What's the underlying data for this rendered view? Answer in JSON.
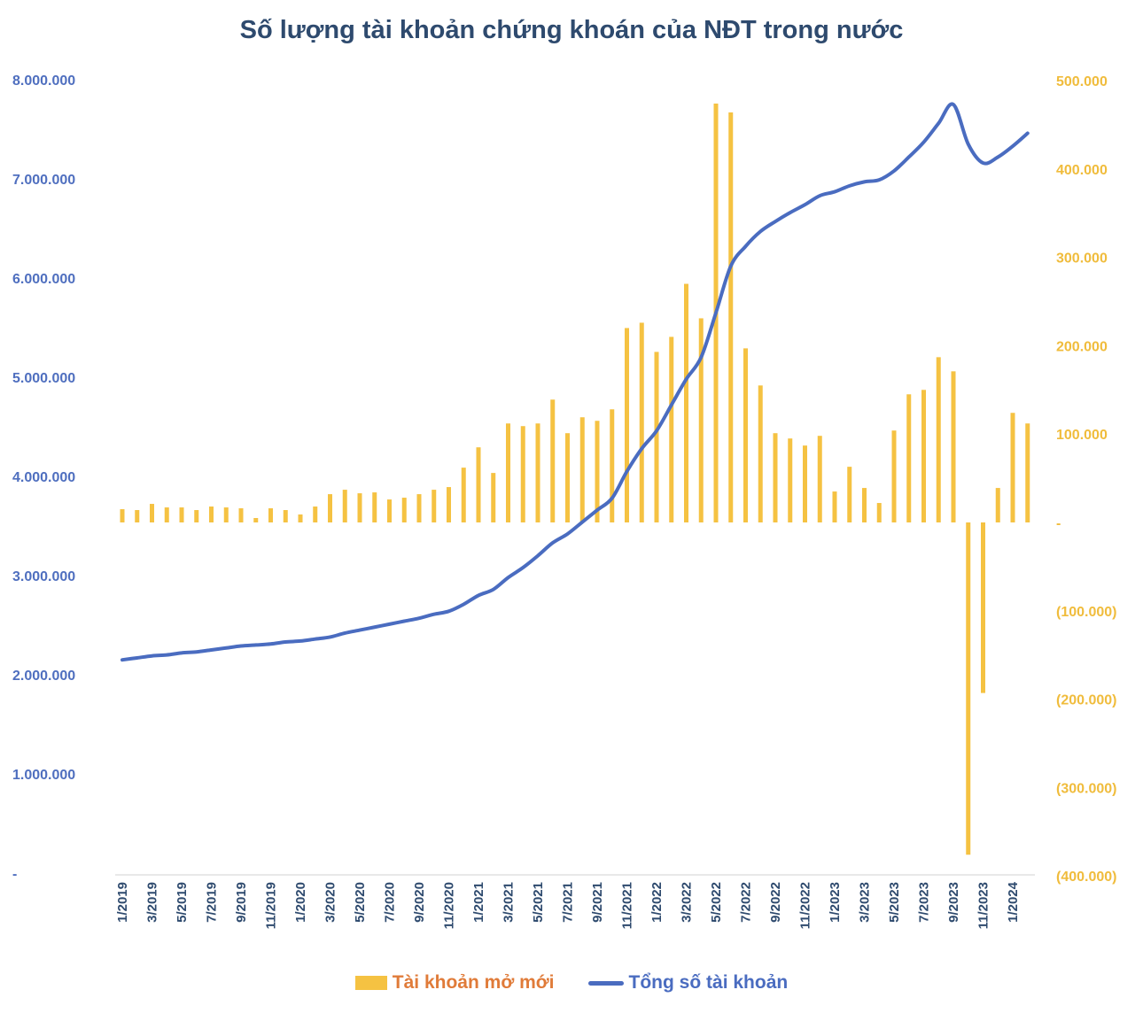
{
  "chart_data": {
    "type": "bar+line",
    "title": "Số lượng tài khoản chứng khoán của NĐT trong nước",
    "categories": [
      "1/2019",
      "2/2019",
      "3/2019",
      "4/2019",
      "5/2019",
      "6/2019",
      "7/2019",
      "8/2019",
      "9/2019",
      "10/2019",
      "11/2019",
      "12/2019",
      "1/2020",
      "2/2020",
      "3/2020",
      "4/2020",
      "5/2020",
      "6/2020",
      "7/2020",
      "8/2020",
      "9/2020",
      "10/2020",
      "11/2020",
      "12/2020",
      "1/2021",
      "2/2021",
      "3/2021",
      "4/2021",
      "5/2021",
      "6/2021",
      "7/2021",
      "8/2021",
      "9/2021",
      "10/2021",
      "11/2021",
      "12/2021",
      "1/2022",
      "2/2022",
      "3/2022",
      "4/2022",
      "5/2022",
      "6/2022",
      "7/2022",
      "8/2022",
      "9/2022",
      "10/2022",
      "11/2022",
      "12/2022",
      "1/2023",
      "2/2023",
      "3/2023",
      "4/2023",
      "5/2023",
      "6/2023",
      "7/2023",
      "8/2023",
      "9/2023",
      "10/2023",
      "11/2023",
      "12/2023",
      "1/2024",
      "2/2024"
    ],
    "x_tick_labels": [
      "1/2019",
      "3/2019",
      "5/2019",
      "7/2019",
      "9/2019",
      "11/2019",
      "1/2020",
      "3/2020",
      "5/2020",
      "7/2020",
      "9/2020",
      "11/2020",
      "1/2021",
      "3/2021",
      "5/2021",
      "7/2021",
      "9/2021",
      "11/2021",
      "1/2022",
      "3/2022",
      "5/2022",
      "7/2022",
      "9/2022",
      "11/2022",
      "1/2023",
      "3/2023",
      "5/2023",
      "7/2023",
      "9/2023",
      "11/2023",
      "1/2024"
    ],
    "series": [
      {
        "name": "Tài khoản mở mới",
        "type": "bar",
        "axis": "right",
        "color": "#f5c242",
        "values": [
          15000,
          14000,
          21000,
          17000,
          17000,
          14000,
          18000,
          17000,
          16000,
          5000,
          16000,
          14000,
          9000,
          18000,
          32000,
          37000,
          33000,
          34000,
          26000,
          28000,
          32000,
          37000,
          40000,
          62000,
          85000,
          56000,
          112000,
          109000,
          112000,
          139000,
          101000,
          119000,
          115000,
          128000,
          220000,
          226000,
          193000,
          210000,
          270000,
          231000,
          474000,
          464000,
          197000,
          155000,
          101000,
          95000,
          87000,
          98000,
          35000,
          63000,
          39000,
          22000,
          104000,
          145000,
          150000,
          187000,
          171000,
          -376000,
          -193000,
          39000,
          124000,
          112000
        ]
      },
      {
        "name": "Tổng số tài khoản",
        "type": "line",
        "axis": "left",
        "color": "#4a6cc0",
        "values": [
          2150000,
          2170000,
          2190000,
          2200000,
          2220000,
          2230000,
          2250000,
          2270000,
          2290000,
          2300000,
          2310000,
          2330000,
          2340000,
          2360000,
          2380000,
          2420000,
          2450000,
          2480000,
          2510000,
          2540000,
          2570000,
          2610000,
          2640000,
          2710000,
          2800000,
          2860000,
          2980000,
          3080000,
          3200000,
          3330000,
          3420000,
          3540000,
          3660000,
          3780000,
          4050000,
          4280000,
          4460000,
          4720000,
          4980000,
          5200000,
          5650000,
          6120000,
          6320000,
          6470000,
          6570000,
          6660000,
          6740000,
          6830000,
          6870000,
          6930000,
          6970000,
          6990000,
          7080000,
          7220000,
          7370000,
          7560000,
          7750000,
          7350000,
          7160000,
          7220000,
          7330000,
          7460000
        ]
      }
    ],
    "y_left": {
      "range": [
        0,
        8000000
      ],
      "ticks": [
        0,
        1000000,
        2000000,
        3000000,
        4000000,
        5000000,
        6000000,
        7000000,
        8000000
      ],
      "tick_labels": [
        "-",
        "1.000.000",
        "2.000.000",
        "3.000.000",
        "4.000.000",
        "5.000.000",
        "6.000.000",
        "7.000.000",
        "8.000.000"
      ]
    },
    "y_right": {
      "range": [
        -400000,
        500000
      ],
      "ticks": [
        -400000,
        -300000,
        -200000,
        -100000,
        0,
        100000,
        200000,
        300000,
        400000,
        500000
      ],
      "tick_labels": [
        "(400.000)",
        "(300.000)",
        "(200.000)",
        "(100.000)",
        "-",
        "100.000",
        "200.000",
        "300.000",
        "400.000",
        "500.000"
      ]
    },
    "grid": false,
    "legend_position": "bottom"
  },
  "legend": {
    "bar_label": "Tài khoản mở mới",
    "line_label": "Tổng số tài khoản",
    "bar_label_color": "#e07b39",
    "line_label_color": "#4a6cc0"
  }
}
